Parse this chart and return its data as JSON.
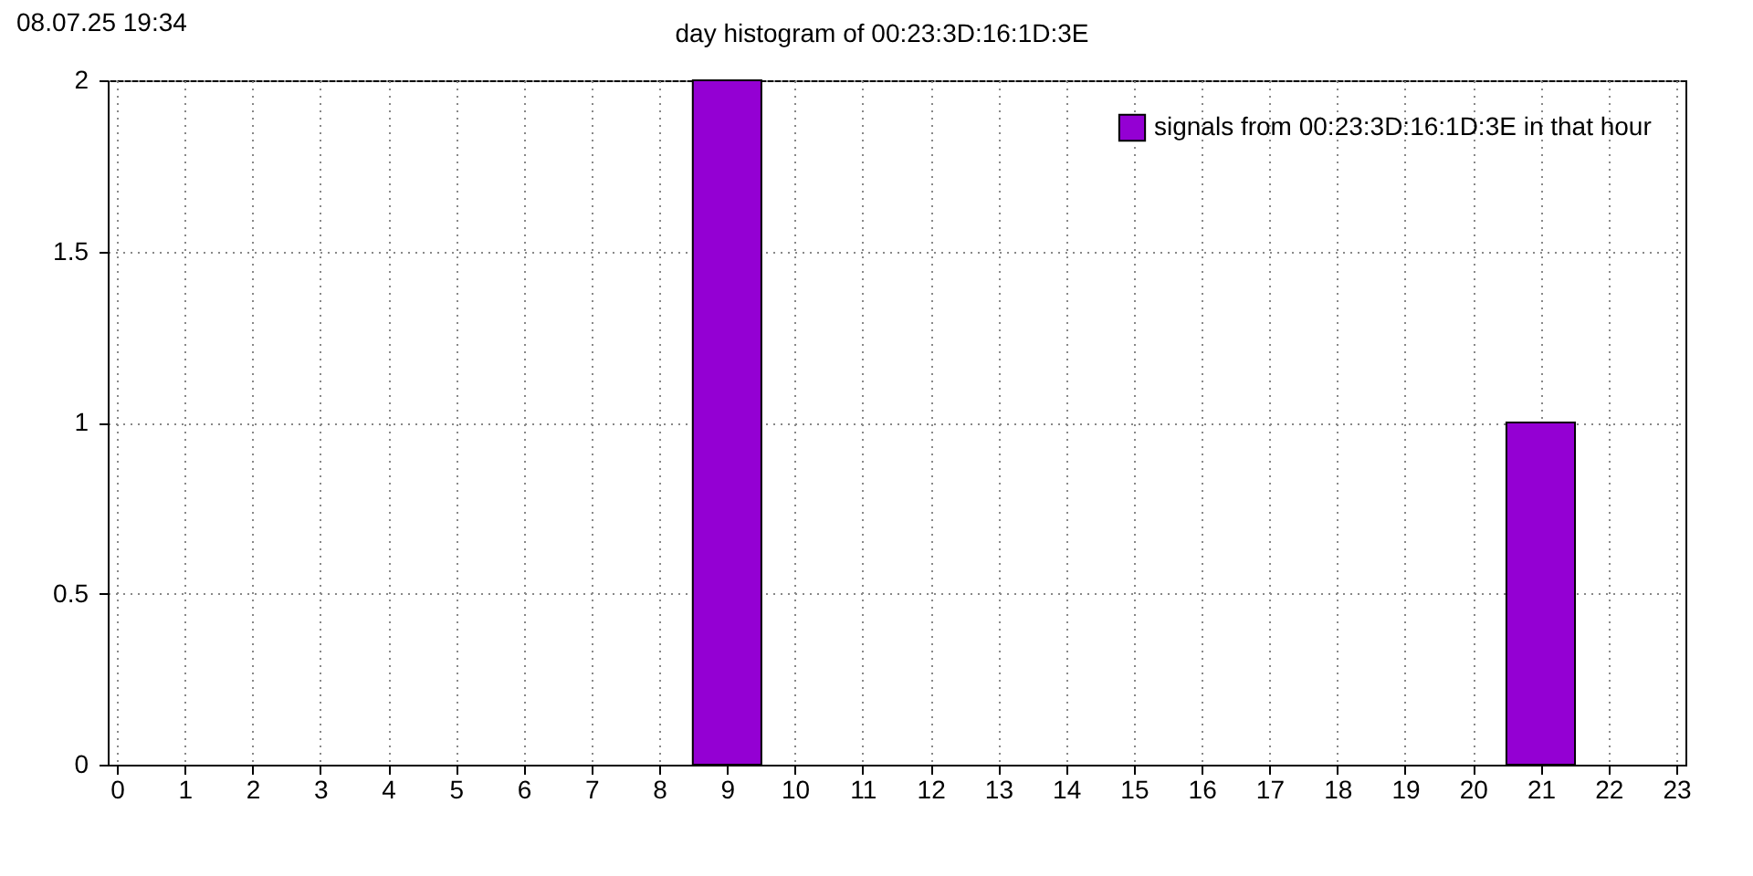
{
  "chart_data": {
    "type": "bar",
    "title": "day histogram of 00:23:3D:16:1D:3E",
    "annotations": [
      "08.07.25 19:34"
    ],
    "x": [
      9,
      21
    ],
    "series": [
      {
        "name": "signals from 00:23:3D:16:1D:3E in that hour",
        "color": "#9400d3",
        "values": [
          2,
          1
        ]
      }
    ],
    "xlim": [
      0,
      23
    ],
    "xticks": [
      0,
      1,
      2,
      3,
      4,
      5,
      6,
      7,
      8,
      9,
      10,
      11,
      12,
      13,
      14,
      15,
      16,
      17,
      18,
      19,
      20,
      21,
      22,
      23
    ],
    "ylim": [
      0,
      2
    ],
    "yticks": [
      0,
      0.5,
      1,
      1.5,
      2
    ],
    "grid": true,
    "legend": "top right"
  }
}
